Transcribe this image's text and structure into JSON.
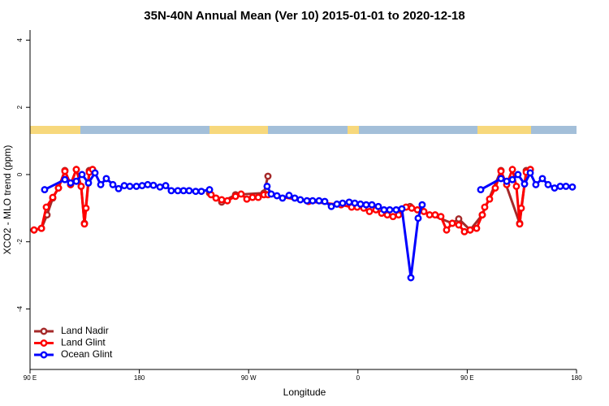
{
  "chart_data": {
    "type": "line",
    "title": "35N-40N Annual Mean (Ver 10)   2015-01-01 to 2020-12-18",
    "x_label": "Longitude",
    "y_label": "XCO2 - MLO trend (ppm)",
    "xlim": [
      90,
      540
    ],
    "ylim": [
      -5.8,
      4.3
    ],
    "xticks": [
      {
        "value": 90,
        "label": "90 E"
      },
      180,
      {
        "value": 270,
        "label": "90 W"
      },
      {
        "value": 360,
        "label": "0"
      },
      {
        "value": 450,
        "label": "90 E"
      },
      {
        "value": 540,
        "label": "180"
      }
    ],
    "yticks": [
      -4,
      -2,
      0,
      2,
      4
    ],
    "legend": "bottomleft",
    "series": [
      {
        "name": "Land Nadir",
        "color": "#a52a2a",
        "x": [
          93.3,
          99.4,
          104.0,
          108.7,
          113.4,
          118.7,
          123.4,
          128.1,
          132.1,
          134.8,
          138.8,
          141.5,
          190,
          237.8,
          247.8,
          259.2,
          282.6,
          285.9,
          350,
          402.9,
          437.7,
          443.0,
          452.4,
          462.4,
          477.8,
          493.2,
          498.6,
          502.0
        ],
        "values": [
          -1.65,
          -1.6,
          -1.2,
          -0.7,
          -0.4,
          0.12,
          -0.3,
          0.15,
          -0.35,
          -1.45,
          0.12,
          0.15,
          null,
          -0.55,
          -0.82,
          -0.6,
          -0.55,
          -0.05,
          null,
          -0.95,
          -1.45,
          -1.32,
          -1.65,
          -1.2,
          0.12,
          -1.45,
          0.12,
          0.15
        ]
      },
      {
        "name": "Land Glint",
        "color": "#ff0000",
        "x": [
          93.3,
          99.4,
          103.4,
          108.7,
          113.4,
          118.7,
          123.4,
          128.1,
          132.1,
          134.8,
          136.1,
          138.8,
          141.5,
          190,
          239.1,
          243.1,
          247.8,
          252.5,
          259.2,
          263.8,
          268.5,
          273.2,
          277.9,
          282.6,
          285.9,
          319.3,
          346.1,
          354.8,
          359.4,
          364.8,
          369.5,
          374.8,
          379.5,
          384.2,
          388.9,
          393.5,
          399.6,
          404.3,
          409.0,
          414.3,
          419.0,
          423.6,
          428.3,
          433.0,
          437.7,
          443.0,
          447.7,
          452.4,
          457.7,
          462.4,
          464.4,
          468.4,
          473.1,
          477.8,
          482.5,
          487.2,
          490.5,
          493.2,
          494.5,
          498.6,
          502.0
        ],
        "values": [
          -1.65,
          -1.6,
          -0.97,
          -0.68,
          -0.4,
          0.1,
          -0.3,
          0.15,
          -0.35,
          -1.47,
          -1.0,
          0.07,
          0.15,
          null,
          -0.6,
          -0.7,
          -0.75,
          -0.78,
          -0.65,
          -0.58,
          -0.73,
          -0.68,
          -0.68,
          -0.6,
          -0.6,
          -0.8,
          -0.9,
          -0.97,
          -0.97,
          -1.0,
          -1.1,
          -1.05,
          -1.15,
          -1.2,
          -1.25,
          -1.2,
          -0.97,
          -1.0,
          -1.05,
          -1.1,
          -1.2,
          -1.2,
          -1.25,
          -1.65,
          -1.45,
          -1.5,
          -1.7,
          -1.65,
          -1.6,
          -1.2,
          -0.97,
          -0.73,
          -0.4,
          0.1,
          -0.3,
          0.15,
          -0.35,
          -1.47,
          -1.0,
          0.07,
          0.15
        ]
      },
      {
        "name": "Ocean Glint",
        "color": "#0000ff",
        "x": [
          102.0,
          118.7,
          123.4,
          128.1,
          132.8,
          138.1,
          143.5,
          148.2,
          152.8,
          158.2,
          162.9,
          167.6,
          172.2,
          177.6,
          182.3,
          186.9,
          191.6,
          197.0,
          201.7,
          206.3,
          211.7,
          216.4,
          221.0,
          226.4,
          231.1,
          237.8,
          260,
          285.2,
          288.6,
          293.3,
          297.9,
          303.3,
          308.0,
          312.6,
          318.0,
          322.7,
          328.0,
          332.7,
          338.1,
          342.7,
          347.4,
          352.8,
          357.4,
          362.1,
          366.8,
          371.5,
          376.8,
          381.5,
          386.2,
          391.5,
          396.2,
          403.6,
          409.6,
          412.9,
          440,
          461.1,
          477.8,
          482.5,
          487.2,
          491.8,
          497.2,
          501.9,
          506.5,
          511.9,
          516.6,
          521.9,
          526.6,
          531.3,
          536.6
        ],
        "values": [
          -0.45,
          -0.15,
          -0.25,
          -0.2,
          0.0,
          -0.25,
          0.05,
          -0.3,
          -0.12,
          -0.3,
          -0.42,
          -0.33,
          -0.35,
          -0.35,
          -0.33,
          -0.3,
          -0.32,
          -0.37,
          -0.33,
          -0.48,
          -0.48,
          -0.48,
          -0.48,
          -0.5,
          -0.5,
          -0.45,
          null,
          -0.35,
          -0.58,
          -0.63,
          -0.7,
          -0.62,
          -0.7,
          -0.75,
          -0.78,
          -0.78,
          -0.78,
          -0.8,
          -0.95,
          -0.88,
          -0.85,
          -0.82,
          -0.85,
          -0.88,
          -0.9,
          -0.9,
          -0.95,
          -1.05,
          -1.05,
          -1.05,
          -1.02,
          -3.07,
          -1.3,
          -0.9,
          null,
          -0.45,
          -0.12,
          -0.2,
          -0.15,
          0.0,
          -0.28,
          0.05,
          -0.3,
          -0.12,
          -0.3,
          -0.4,
          -0.35,
          -0.35,
          -0.37
        ]
      }
    ]
  }
}
